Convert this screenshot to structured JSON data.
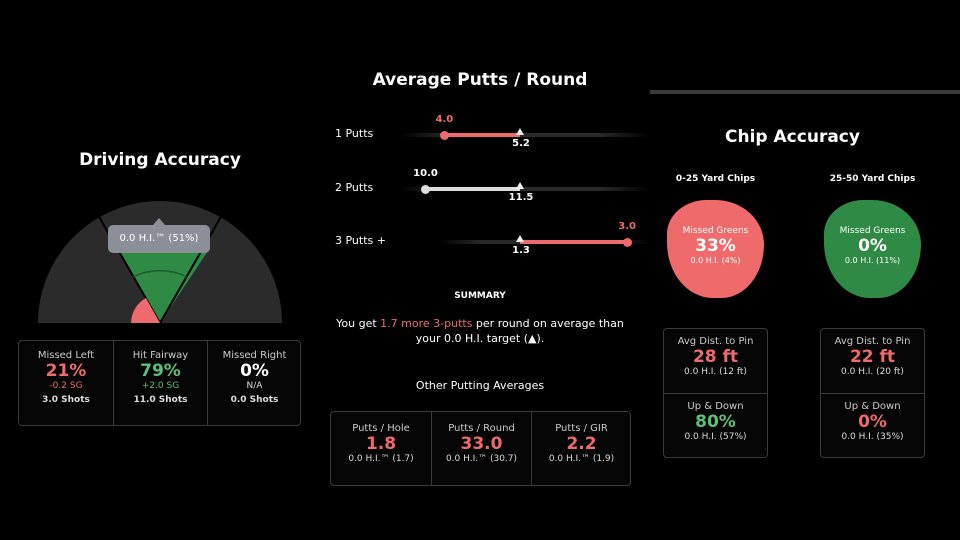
{
  "driving": {
    "title": "Driving Accuracy",
    "tooltip": "0.0 H.I.™ (51%)",
    "cells": [
      {
        "label": "Missed Left",
        "value": "21%",
        "sg": "-0.2 SG",
        "shots": "3.0 Shots",
        "color": "#ef6b6b"
      },
      {
        "label": "Hit Fairway",
        "value": "79%",
        "sg": "+2.0 SG",
        "shots": "11.0 Shots",
        "color": "#5cc07a"
      },
      {
        "label": "Missed Right",
        "value": "0%",
        "sg": "N/A",
        "shots": "0.0 Shots",
        "color": "#ffffff"
      }
    ]
  },
  "putts": {
    "title": "Average Putts / Round",
    "rows": [
      {
        "label": "1 Putts",
        "value": 4.0,
        "value_text": "4.0",
        "target": 5.2,
        "target_text": "5.2",
        "color": "#ef6b6b"
      },
      {
        "label": "2 Putts",
        "value": 10.0,
        "value_text": "10.0",
        "target": 11.5,
        "target_text": "11.5",
        "color": "#dddddd"
      },
      {
        "label": "3 Putts +",
        "value": 3.0,
        "value_text": "3.0",
        "target": 1.3,
        "target_text": "1.3",
        "color": "#ef6b6b"
      }
    ],
    "summary_heading": "SUMMARY",
    "summary_pre": "You get ",
    "summary_highlight": "1.7 more 3-putts",
    "summary_post": " per round on average than your 0.0 H.I. target (▲).",
    "other_title": "Other Putting Averages",
    "other": [
      {
        "label": "Putts / Hole",
        "value": "1.8",
        "sub": "0.0 H.I.™ (1.7)"
      },
      {
        "label": "Putts / Round",
        "value": "33.0",
        "sub": "0.0 H.I.™ (30.7)"
      },
      {
        "label": "Putts / GIR",
        "value": "2.2",
        "sub": "0.0 H.I.™ (1.9)"
      }
    ]
  },
  "chip": {
    "title": "Chip Accuracy",
    "groups": [
      {
        "title": "0-25 Yard Chips",
        "blob_label": "Missed Greens",
        "blob_value": "33%",
        "blob_sub": "0.0 H.I. (4%)",
        "blob_color": "#ef6b6b",
        "dist_label": "Avg Dist. to Pin",
        "dist_value": "28 ft",
        "dist_sub": "0.0 H.I. (12 ft)",
        "ud_label": "Up & Down",
        "ud_value": "80%",
        "ud_sub": "0.0 H.I. (57%)",
        "ud_color": "#5cc07a"
      },
      {
        "title": "25-50 Yard Chips",
        "blob_label": "Missed Greens",
        "blob_value": "0%",
        "blob_sub": "0.0 H.I. (11%)",
        "blob_color": "#2f8a45",
        "dist_label": "Avg Dist. to Pin",
        "dist_value": "22 ft",
        "dist_sub": "0.0 H.I. (20 ft)",
        "ud_label": "Up & Down",
        "ud_value": "0%",
        "ud_sub": "0.0 H.I. (35%)",
        "ud_color": "#ef6b6b"
      }
    ]
  }
}
